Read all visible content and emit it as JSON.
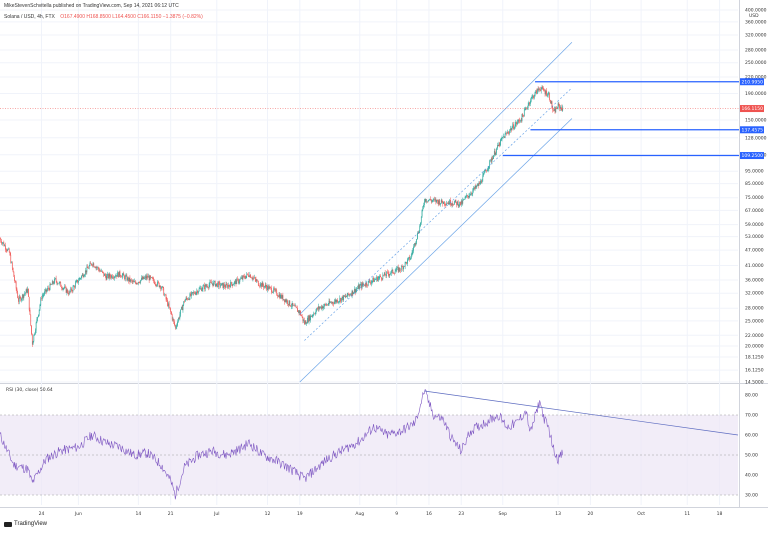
{
  "header": {
    "publisher_line": "MikeStevenSchvitella published on TradingView.com, Sep 14, 2021 06:12 UTC",
    "symbol_line": "Solana / USD, 4h, FTX",
    "ohlc": "O167.4900 H168.8500 L164.4500 C166.1150 −1.3875 (−0.82%)"
  },
  "footer": {
    "logo_text": "TradingView"
  },
  "colors": {
    "up": "#26a69a",
    "down": "#ef5350",
    "channel": "#2962ff",
    "rsi_line": "#7e57c2",
    "rsi_band": "#ede7f6",
    "hline": "#2962ff",
    "last_price_bg": "#ef5350"
  },
  "chart_data": [
    {
      "type": "candlestick",
      "title": "Solana / USD, 4h, FTX",
      "scale": "log",
      "ylim": [
        14.5,
        400
      ],
      "y_ticks": [
        {
          "v": 400,
          "label": "400.0000"
        },
        {
          "v": 360,
          "label": "360.0000"
        },
        {
          "v": 320,
          "label": "320.0000"
        },
        {
          "v": 280,
          "label": "280.0000"
        },
        {
          "v": 250,
          "label": "250.0000"
        },
        {
          "v": 220,
          "label": "220.0000"
        },
        {
          "v": 190,
          "label": "190.0000"
        },
        {
          "v": 150,
          "label": "150.0000"
        },
        {
          "v": 128,
          "label": "128.0000"
        },
        {
          "v": 110,
          "label": "110.0000"
        },
        {
          "v": 95,
          "label": "95.0000"
        },
        {
          "v": 85,
          "label": "85.0000"
        },
        {
          "v": 75,
          "label": "75.0000"
        },
        {
          "v": 67,
          "label": "67.0000"
        },
        {
          "v": 59,
          "label": "59.0000"
        },
        {
          "v": 53,
          "label": "53.0000"
        },
        {
          "v": 47,
          "label": "47.0000"
        },
        {
          "v": 41,
          "label": "41.0000"
        },
        {
          "v": 36,
          "label": "36.0000"
        },
        {
          "v": 32,
          "label": "32.0000"
        },
        {
          "v": 28,
          "label": "28.0000"
        },
        {
          "v": 25,
          "label": "25.0000"
        },
        {
          "v": 22,
          "label": "22.0000"
        },
        {
          "v": 20,
          "label": "20.0000"
        },
        {
          "v": 18.125,
          "label": "18.1250"
        },
        {
          "v": 16.125,
          "label": "16.1250"
        },
        {
          "v": 14.5,
          "label": "14.5000"
        }
      ],
      "y_unit": "USD",
      "x_ticks": [
        {
          "date": "2021-05-24",
          "label": "24"
        },
        {
          "date": "2021-06-01",
          "label": "Jun"
        },
        {
          "date": "2021-06-14",
          "label": "14"
        },
        {
          "date": "2021-06-21",
          "label": "21"
        },
        {
          "date": "2021-07-01",
          "label": "Jul"
        },
        {
          "date": "2021-07-12",
          "label": "12"
        },
        {
          "date": "2021-07-19",
          "label": "19"
        },
        {
          "date": "2021-08-01",
          "label": "Aug"
        },
        {
          "date": "2021-08-09",
          "label": "9"
        },
        {
          "date": "2021-08-16",
          "label": "16"
        },
        {
          "date": "2021-08-23",
          "label": "23"
        },
        {
          "date": "2021-09-01",
          "label": "Sep"
        },
        {
          "date": "2021-09-13",
          "label": "13"
        },
        {
          "date": "2021-09-20",
          "label": "20"
        },
        {
          "date": "2021-10-01",
          "label": "Oct"
        },
        {
          "date": "2021-10-11",
          "label": "11"
        },
        {
          "date": "2021-10-18",
          "label": "18"
        }
      ],
      "x_range": [
        "2021-05-15",
        "2021-10-22"
      ],
      "price_path": [
        [
          "2021-05-15",
          52
        ],
        [
          "2021-05-17",
          46
        ],
        [
          "2021-05-19",
          30
        ],
        [
          "2021-05-21",
          33
        ],
        [
          "2021-05-22",
          20.5
        ],
        [
          "2021-05-24",
          31
        ],
        [
          "2021-05-27",
          36
        ],
        [
          "2021-05-30",
          32
        ],
        [
          "2021-06-01",
          36
        ],
        [
          "2021-06-04",
          42
        ],
        [
          "2021-06-07",
          37
        ],
        [
          "2021-06-10",
          38
        ],
        [
          "2021-06-13",
          35
        ],
        [
          "2021-06-16",
          37
        ],
        [
          "2021-06-19",
          34
        ],
        [
          "2021-06-21",
          27
        ],
        [
          "2021-06-22",
          23.5
        ],
        [
          "2021-06-24",
          30
        ],
        [
          "2021-06-27",
          33
        ],
        [
          "2021-06-30",
          35
        ],
        [
          "2021-07-03",
          34
        ],
        [
          "2021-07-06",
          36
        ],
        [
          "2021-07-08",
          38
        ],
        [
          "2021-07-10",
          35
        ],
        [
          "2021-07-13",
          33
        ],
        [
          "2021-07-16",
          30
        ],
        [
          "2021-07-19",
          27
        ],
        [
          "2021-07-20",
          24.5
        ],
        [
          "2021-07-23",
          28
        ],
        [
          "2021-07-26",
          29.5
        ],
        [
          "2021-07-29",
          31
        ],
        [
          "2021-08-01",
          34
        ],
        [
          "2021-08-04",
          36
        ],
        [
          "2021-08-07",
          38
        ],
        [
          "2021-08-10",
          40
        ],
        [
          "2021-08-12",
          44
        ],
        [
          "2021-08-14",
          58
        ],
        [
          "2021-08-15",
          74
        ],
        [
          "2021-08-17",
          73
        ],
        [
          "2021-08-19",
          72
        ],
        [
          "2021-08-21",
          72
        ],
        [
          "2021-08-23",
          71
        ],
        [
          "2021-08-24",
          75
        ],
        [
          "2021-08-27",
          85
        ],
        [
          "2021-08-30",
          110
        ],
        [
          "2021-09-01",
          128
        ],
        [
          "2021-09-03",
          140
        ],
        [
          "2021-09-05",
          152
        ],
        [
          "2021-09-07",
          180
        ],
        [
          "2021-09-09",
          200
        ],
        [
          "2021-09-11",
          188
        ],
        [
          "2021-09-12",
          160
        ],
        [
          "2021-09-13",
          170
        ],
        [
          "2021-09-14",
          166.115
        ]
      ],
      "channel": {
        "style": "parallel channel",
        "lines": [
          {
            "from": [
              "2021-07-19",
              26.5
            ],
            "to": [
              "2021-09-16",
              300
            ],
            "dash": false
          },
          {
            "from": [
              "2021-07-20",
              21
            ],
            "to": [
              "2021-09-16",
              200
            ],
            "dash": true
          },
          {
            "from": [
              "2021-07-19",
              14.5
            ],
            "to": [
              "2021-09-16",
              152
            ],
            "dash": false
          }
        ]
      },
      "horizontal_levels": [
        {
          "value": 210.995,
          "label": "210.9950",
          "from": "2021-09-08"
        },
        {
          "value": 137.4575,
          "label": "137.4575",
          "from": "2021-09-07"
        },
        {
          "value": 109.25,
          "label": "109.2500",
          "from": "2021-09-01"
        }
      ],
      "last_price": {
        "value": 166.115,
        "label": "166.1150"
      }
    },
    {
      "type": "line",
      "title": "RSI (30, close) 50.64",
      "legend_label": "RSI (30, close)",
      "legend_value": "50.64",
      "ylim": [
        25,
        85
      ],
      "y_ticks": [
        {
          "v": 80,
          "label": "80.00"
        },
        {
          "v": 70,
          "label": "70.00"
        },
        {
          "v": 60,
          "label": "60.00"
        },
        {
          "v": 50,
          "label": "50.00"
        },
        {
          "v": 40,
          "label": "40.00"
        },
        {
          "v": 30,
          "label": "30.00"
        }
      ],
      "bands": {
        "upper": 70,
        "middle": 50,
        "lower": 30
      },
      "rsi_path": [
        [
          "2021-05-15",
          60
        ],
        [
          "2021-05-18",
          45
        ],
        [
          "2021-05-21",
          43
        ],
        [
          "2021-05-22",
          36
        ],
        [
          "2021-05-25",
          48
        ],
        [
          "2021-05-28",
          52
        ],
        [
          "2021-06-01",
          54
        ],
        [
          "2021-06-04",
          60
        ],
        [
          "2021-06-07",
          56
        ],
        [
          "2021-06-10",
          54
        ],
        [
          "2021-06-13",
          50
        ],
        [
          "2021-06-16",
          51
        ],
        [
          "2021-06-19",
          45
        ],
        [
          "2021-06-21",
          37
        ],
        [
          "2021-06-22",
          30
        ],
        [
          "2021-06-24",
          44
        ],
        [
          "2021-06-27",
          50
        ],
        [
          "2021-06-30",
          52
        ],
        [
          "2021-07-03",
          50
        ],
        [
          "2021-07-06",
          53
        ],
        [
          "2021-07-08",
          56
        ],
        [
          "2021-07-11",
          50
        ],
        [
          "2021-07-14",
          47
        ],
        [
          "2021-07-17",
          43
        ],
        [
          "2021-07-20",
          38
        ],
        [
          "2021-07-22",
          42
        ],
        [
          "2021-07-25",
          48
        ],
        [
          "2021-07-28",
          52
        ],
        [
          "2021-08-01",
          57
        ],
        [
          "2021-08-04",
          64
        ],
        [
          "2021-08-07",
          60
        ],
        [
          "2021-08-10",
          62
        ],
        [
          "2021-08-13",
          66
        ],
        [
          "2021-08-15",
          82
        ],
        [
          "2021-08-17",
          70
        ],
        [
          "2021-08-19",
          68
        ],
        [
          "2021-08-21",
          58
        ],
        [
          "2021-08-23",
          52
        ],
        [
          "2021-08-25",
          62
        ],
        [
          "2021-08-28",
          66
        ],
        [
          "2021-08-31",
          70
        ],
        [
          "2021-09-02",
          64
        ],
        [
          "2021-09-04",
          66
        ],
        [
          "2021-09-06",
          72
        ],
        [
          "2021-09-07",
          61
        ],
        [
          "2021-09-09",
          77
        ],
        [
          "2021-09-10",
          68
        ],
        [
          "2021-09-11",
          63
        ],
        [
          "2021-09-12",
          53
        ],
        [
          "2021-09-13",
          48
        ],
        [
          "2021-09-14",
          50.64
        ]
      ],
      "divergence_line": {
        "from": [
          "2021-08-15",
          82
        ],
        "to": [
          "2021-10-22",
          60
        ]
      }
    }
  ]
}
